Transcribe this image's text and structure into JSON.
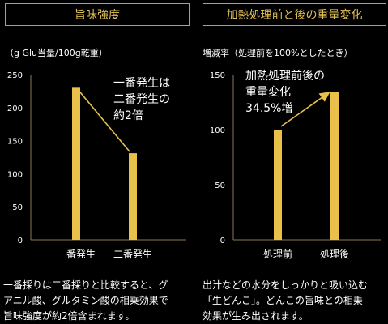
{
  "colors": {
    "bar": "#e8c04a",
    "axis": "#8a7a55",
    "accent": "#c9a227",
    "title": "#e2c055"
  },
  "left": {
    "title": "旨味強度",
    "unit_label": "（g Glu当量/100g乾重）",
    "annotation": [
      "一番発生は",
      "二番発生の",
      "約2倍"
    ],
    "description": [
      "一番採りは二番採りと比較すると、グ",
      "アニル酸、グルタミン酸の相乗効果で",
      "旨味強度が約2倍含まれます。"
    ]
  },
  "right": {
    "title": "加熱処理前と後の重量変化",
    "unit_label": "増減率（処理前を100%としたとき）",
    "annotation": [
      "加熱処理前後の",
      "重量変化",
      "34.5%増"
    ],
    "description": [
      "出汁などの水分をしっかりと吸い込む",
      "「生どんこ」。どんこの旨味との相乗",
      "効果が生み出されます。"
    ]
  },
  "chart_data": [
    {
      "type": "bar",
      "title": "旨味強度",
      "ylabel": "（g Glu当量/100g乾重）",
      "categories": [
        "一番発生",
        "二番発生"
      ],
      "values": [
        230,
        131
      ],
      "ylim": [
        0,
        250
      ],
      "yticks": [
        0,
        50,
        100,
        150,
        200,
        250
      ]
    },
    {
      "type": "bar",
      "title": "加熱処理前と後の重量変化",
      "ylabel": "増減率（処理前を100%としたとき）",
      "categories": [
        "処理前",
        "処理後"
      ],
      "values": [
        100,
        134.5
      ],
      "ylim": [
        0,
        150
      ],
      "yticks": [
        0,
        50,
        100,
        150
      ]
    }
  ]
}
